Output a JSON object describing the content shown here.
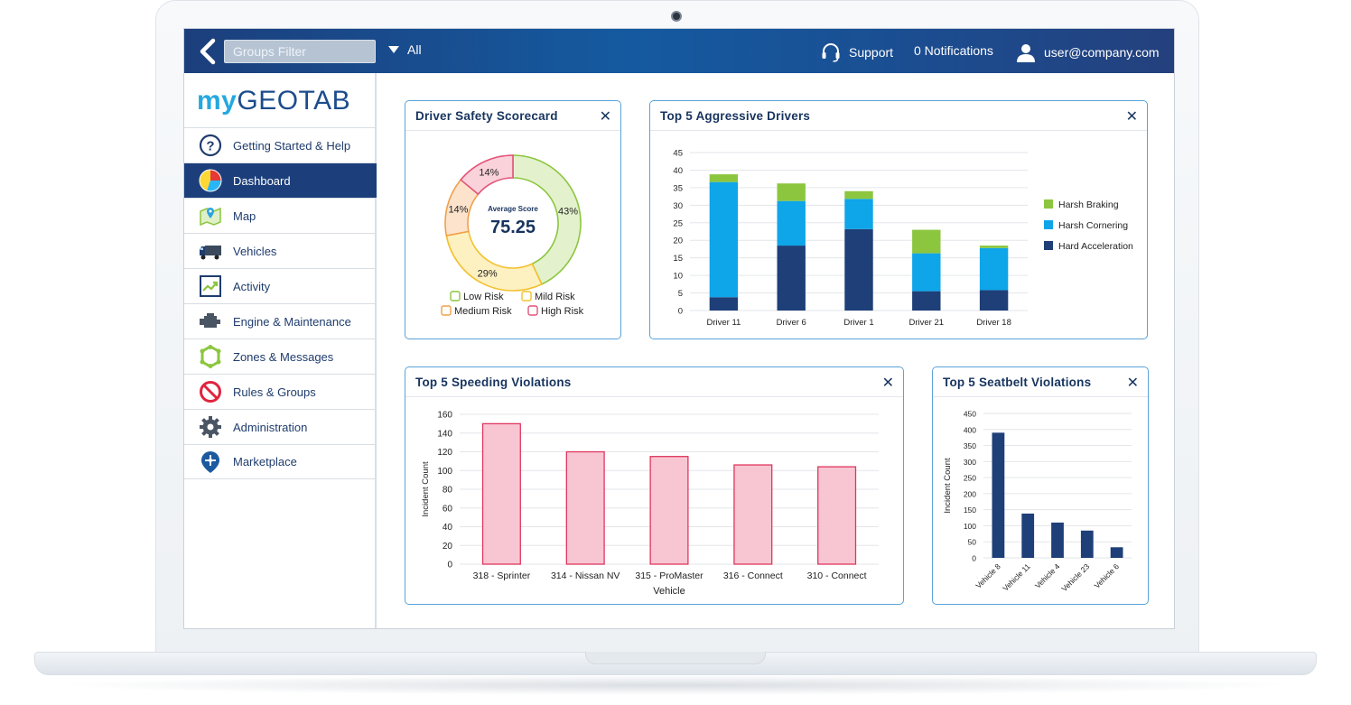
{
  "topbar": {
    "groups_filter_placeholder": "Groups Filter",
    "group_selected": "All",
    "support_label": "Support",
    "notifications_label": "0 Notifications",
    "user_email": "user@company.com"
  },
  "logo": {
    "my": "my",
    "geo": "GEOTAB"
  },
  "sidebar": {
    "items": [
      {
        "label": "Getting Started & Help",
        "icon": "help-icon"
      },
      {
        "label": "Dashboard",
        "icon": "pie-chart-icon"
      },
      {
        "label": "Map",
        "icon": "map-icon"
      },
      {
        "label": "Vehicles",
        "icon": "truck-icon"
      },
      {
        "label": "Activity",
        "icon": "activity-icon"
      },
      {
        "label": "Engine & Maintenance",
        "icon": "engine-icon"
      },
      {
        "label": "Zones & Messages",
        "icon": "zones-icon"
      },
      {
        "label": "Rules & Groups",
        "icon": "no-entry-icon"
      },
      {
        "label": "Administration",
        "icon": "gear-icon"
      },
      {
        "label": "Marketplace",
        "icon": "marketplace-icon"
      }
    ]
  },
  "cards": {
    "scorecard": {
      "title": "Driver Safety Scorecard",
      "close": "✕"
    },
    "aggressive": {
      "title": "Top 5 Aggressive Drivers",
      "close": "✕"
    },
    "speeding": {
      "title": "Top 5 Speeding Violations",
      "close": "✕"
    },
    "seatbelt": {
      "title": "Top 5 Seatbelt Violations",
      "close": "✕"
    }
  },
  "chart_data": [
    {
      "id": "scorecard",
      "type": "pie",
      "title": "Driver Safety Scorecard",
      "center_label": "Average Score",
      "center_value": "75.25",
      "slices": [
        {
          "name": "Low Risk",
          "value": 43,
          "label": "43%",
          "fill": "#e3f2cd",
          "stroke": "#8cc63f"
        },
        {
          "name": "Mild Risk",
          "value": 29,
          "label": "29%",
          "fill": "#fdf1c2",
          "stroke": "#f2c12e"
        },
        {
          "name": "Medium Risk",
          "value": 14,
          "label": "14%",
          "fill": "#fde3cc",
          "stroke": "#f0a04b"
        },
        {
          "name": "High Risk",
          "value": 14,
          "label": "14%",
          "fill": "#fad2da",
          "stroke": "#e2557a"
        }
      ],
      "legend": [
        {
          "name": "Low Risk",
          "color": "#8cc63f"
        },
        {
          "name": "Mild Risk",
          "color": "#f2c12e"
        },
        {
          "name": "Medium Risk",
          "color": "#f0a04b"
        },
        {
          "name": "High Risk",
          "color": "#e2557a"
        }
      ]
    },
    {
      "id": "aggressive",
      "type": "bar",
      "stacked": true,
      "title": "Top 5 Aggressive Drivers",
      "categories": [
        "Driver 11",
        "Driver 6",
        "Driver 1",
        "Driver 21",
        "Driver 18"
      ],
      "ylim": [
        0,
        45
      ],
      "yticks": [
        0,
        5,
        10,
        15,
        20,
        25,
        30,
        35,
        40,
        45
      ],
      "grid": true,
      "legend_position": "right",
      "series": [
        {
          "name": "Hard Acceleration",
          "color": "#1e3f78",
          "values": [
            3.8,
            18.5,
            23.2,
            5.5,
            5.8
          ]
        },
        {
          "name": "Harsh Cornering",
          "color": "#0ea5e9",
          "values": [
            32.8,
            12.7,
            8.6,
            10.8,
            12.0
          ]
        },
        {
          "name": "Harsh Braking",
          "color": "#8cc63f",
          "values": [
            2.2,
            5.0,
            2.2,
            6.7,
            0.7
          ]
        }
      ],
      "legend_order": [
        "Harsh Braking",
        "Harsh Cornering",
        "Hard Acceleration"
      ]
    },
    {
      "id": "speeding",
      "type": "bar",
      "title": "Top 5 Speeding Violations",
      "categories": [
        "318 - Sprinter",
        "314 - Nissan NV",
        "315 - ProMaster",
        "316 - Connect",
        "310 - Connect"
      ],
      "values": [
        150,
        120,
        115,
        106,
        104
      ],
      "xlabel": "Vehicle",
      "ylabel": "Incident Count",
      "ylim": [
        0,
        160
      ],
      "yticks": [
        0,
        20,
        40,
        60,
        80,
        100,
        120,
        140,
        160
      ],
      "grid": true,
      "bar_fill": "#f8c6d2",
      "bar_stroke": "#e0365f"
    },
    {
      "id": "seatbelt",
      "type": "bar",
      "title": "Top 5 Seatbelt Violations",
      "categories": [
        "Vehicle 8",
        "Vehicle 11",
        "Vehicle 4",
        "Vehicle 23",
        "Vehicle 6"
      ],
      "values": [
        390,
        138,
        110,
        85,
        33
      ],
      "ylabel": "Incident Count",
      "ylim": [
        0,
        450
      ],
      "yticks": [
        0,
        50,
        100,
        150,
        200,
        250,
        300,
        350,
        400,
        450
      ],
      "grid": true,
      "bar_fill": "#1e3f78"
    }
  ]
}
